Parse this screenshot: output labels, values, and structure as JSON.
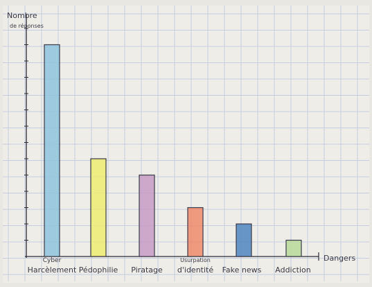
{
  "chart_data": {
    "type": "bar",
    "categories": [
      "Cyber Harcèlement",
      "Pédophilie",
      "Piratage",
      "Usurpation d'identité",
      "Fake news",
      "Addiction"
    ],
    "category_labels": [
      [
        "Cyber",
        "Harcèlement"
      ],
      [
        "",
        "Pédophilie"
      ],
      [
        "",
        "Piratage"
      ],
      [
        "Usurpation",
        "d'identité"
      ],
      [
        "",
        "Fake news"
      ],
      [
        "",
        "Addiction"
      ]
    ],
    "values": [
      13,
      6,
      5,
      3,
      2,
      1
    ],
    "ylim": [
      0,
      14
    ],
    "ylabel_lines": [
      "Nombre",
      "de réponses"
    ],
    "xlabel": "Dangers",
    "grid": true,
    "colors": {
      "paper": "#efede8",
      "grid": "#c7cde0",
      "axis": "#2b2b35",
      "bars": [
        "#8ec3dc",
        "#ecec72",
        "#c79bc6",
        "#ee8a6c",
        "#4f86c0",
        "#b8d99a"
      ],
      "bar_outline": "#3a3a48"
    }
  }
}
